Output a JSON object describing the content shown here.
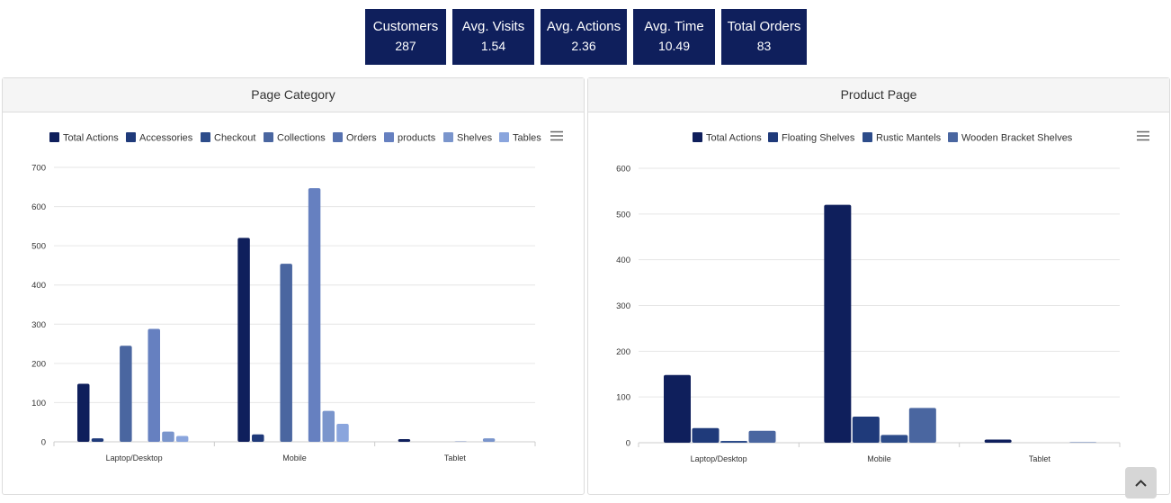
{
  "kpis": [
    {
      "label": "Customers",
      "value": "287"
    },
    {
      "label": "Avg. Visits",
      "value": "1.54"
    },
    {
      "label": "Avg. Actions",
      "value": "2.36"
    },
    {
      "label": "Avg. Time",
      "value": "10.49"
    },
    {
      "label": "Total Orders",
      "value": "83"
    }
  ],
  "panels": {
    "left": {
      "title": "Page Category"
    },
    "right": {
      "title": "Product Page"
    }
  },
  "colors": {
    "kpi_bg": "#0f1f5c",
    "series": [
      "#0f1f5c",
      "#1f3a7a",
      "#2d4c8a",
      "#4a66a0",
      "#5772b0",
      "#6680c0",
      "#7a95cc",
      "#8aa5dd"
    ]
  },
  "icons": {
    "menu": "hamburger-menu-icon",
    "scroll_top": "chevron-up-icon"
  },
  "chart_data": [
    {
      "type": "bar",
      "title": "Page Category",
      "categories": [
        "Laptop/Desktop",
        "Mobile",
        "Tablet"
      ],
      "ylim": [
        0,
        700
      ],
      "yticks": [
        0,
        100,
        200,
        300,
        400,
        500,
        600,
        700
      ],
      "grid": true,
      "legend_position": "top",
      "series": [
        {
          "name": "Total Actions",
          "values": [
            148,
            520,
            7
          ]
        },
        {
          "name": "Accessories",
          "values": [
            9,
            19,
            0
          ]
        },
        {
          "name": "Checkout",
          "values": [
            0,
            0,
            0
          ]
        },
        {
          "name": "Collections",
          "values": [
            245,
            454,
            0
          ]
        },
        {
          "name": "Orders",
          "values": [
            0,
            0,
            1
          ]
        },
        {
          "name": "products",
          "values": [
            288,
            647,
            0
          ]
        },
        {
          "name": "Shelves",
          "values": [
            26,
            79,
            9
          ]
        },
        {
          "name": "Tables",
          "values": [
            15,
            46,
            0
          ]
        }
      ]
    },
    {
      "type": "bar",
      "title": "Product Page",
      "categories": [
        "Laptop/Desktop",
        "Mobile",
        "Tablet"
      ],
      "ylim": [
        0,
        600
      ],
      "yticks": [
        0,
        100,
        200,
        300,
        400,
        500,
        600
      ],
      "grid": true,
      "legend_position": "top",
      "series": [
        {
          "name": "Total Actions",
          "values": [
            148,
            520,
            7
          ]
        },
        {
          "name": "Floating Shelves",
          "values": [
            32,
            57,
            0
          ]
        },
        {
          "name": "Rustic Mantels",
          "values": [
            4,
            17,
            0
          ]
        },
        {
          "name": "Wooden Bracket Shelves",
          "values": [
            26,
            76,
            1
          ]
        }
      ]
    }
  ]
}
